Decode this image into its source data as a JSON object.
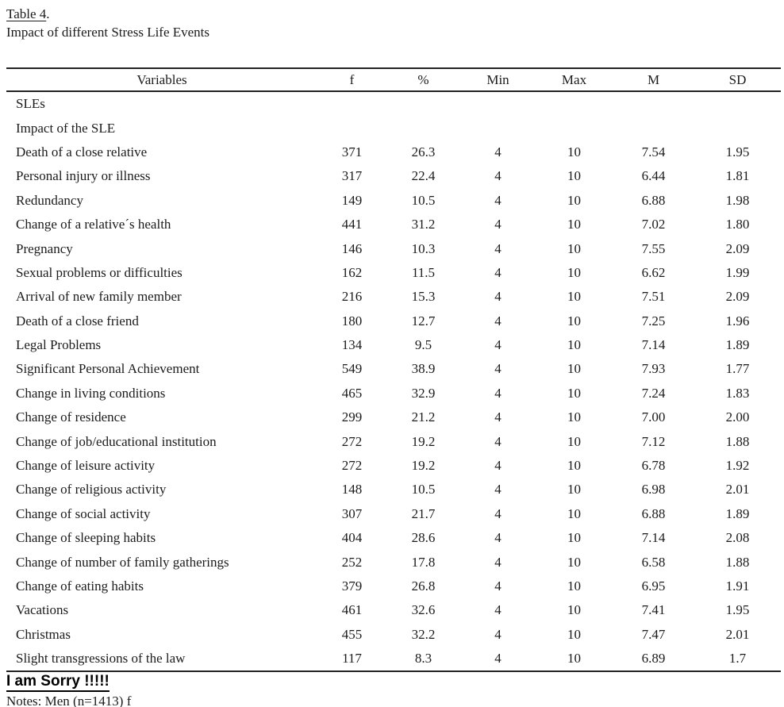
{
  "page": {
    "table_label": "Table 4",
    "table_label_suffix": ".",
    "subtitle": "Impact of different Stress Life Events",
    "sorry_text": "I am Sorry !!!!!",
    "notes": "Notes: Men (n=1413) f"
  },
  "colors": {
    "text": "#1b1b1b",
    "rule": "#222222",
    "background": "#ffffff"
  },
  "table": {
    "columns": [
      "Variables",
      "f",
      "%",
      "Min",
      "Max",
      "M",
      "SD"
    ],
    "rows": [
      {
        "variable": "SLEs",
        "f": "",
        "pct": "",
        "min": "",
        "max": "",
        "m": "",
        "sd": ""
      },
      {
        "variable": "Impact of the SLE",
        "f": "",
        "pct": "",
        "min": "",
        "max": "",
        "m": "",
        "sd": ""
      },
      {
        "variable": "Death of a close relative",
        "f": "371",
        "pct": "26.3",
        "min": "4",
        "max": "10",
        "m": "7.54",
        "sd": "1.95"
      },
      {
        "variable": "Personal injury or illness",
        "f": "317",
        "pct": "22.4",
        "min": "4",
        "max": "10",
        "m": "6.44",
        "sd": "1.81"
      },
      {
        "variable": "Redundancy",
        "f": "149",
        "pct": "10.5",
        "min": "4",
        "max": "10",
        "m": "6.88",
        "sd": "1.98"
      },
      {
        "variable": "Change of a relative´s health",
        "f": "441",
        "pct": "31.2",
        "min": "4",
        "max": "10",
        "m": "7.02",
        "sd": "1.80"
      },
      {
        "variable": "Pregnancy",
        "f": "146",
        "pct": "10.3",
        "min": "4",
        "max": "10",
        "m": "7.55",
        "sd": "2.09"
      },
      {
        "variable": "Sexual problems or difficulties",
        "f": "162",
        "pct": "11.5",
        "min": "4",
        "max": "10",
        "m": "6.62",
        "sd": "1.99"
      },
      {
        "variable": "Arrival of new family member",
        "f": "216",
        "pct": "15.3",
        "min": "4",
        "max": "10",
        "m": "7.51",
        "sd": "2.09"
      },
      {
        "variable": "Death of a close friend",
        "f": "180",
        "pct": "12.7",
        "min": "4",
        "max": "10",
        "m": "7.25",
        "sd": "1.96"
      },
      {
        "variable": "Legal Problems",
        "f": "134",
        "pct": "9.5",
        "min": "4",
        "max": "10",
        "m": "7.14",
        "sd": "1.89"
      },
      {
        "variable": "Significant Personal Achievement",
        "f": "549",
        "pct": "38.9",
        "min": "4",
        "max": "10",
        "m": "7.93",
        "sd": "1.77"
      },
      {
        "variable": "Change in living conditions",
        "f": "465",
        "pct": "32.9",
        "min": "4",
        "max": "10",
        "m": "7.24",
        "sd": "1.83"
      },
      {
        "variable": "Change of residence",
        "f": "299",
        "pct": "21.2",
        "min": "4",
        "max": "10",
        "m": "7.00",
        "sd": "2.00"
      },
      {
        "variable": "Change of job/educational institution",
        "f": "272",
        "pct": "19.2",
        "min": "4",
        "max": "10",
        "m": "7.12",
        "sd": "1.88"
      },
      {
        "variable": "Change of leisure activity",
        "f": "272",
        "pct": "19.2",
        "min": "4",
        "max": "10",
        "m": "6.78",
        "sd": "1.92"
      },
      {
        "variable": "Change of religious activity",
        "f": "148",
        "pct": "10.5",
        "min": "4",
        "max": "10",
        "m": "6.98",
        "sd": "2.01"
      },
      {
        "variable": "Change of social activity",
        "f": "307",
        "pct": "21.7",
        "min": "4",
        "max": "10",
        "m": "6.88",
        "sd": "1.89"
      },
      {
        "variable": "Change of sleeping habits",
        "f": "404",
        "pct": "28.6",
        "min": "4",
        "max": "10",
        "m": "7.14",
        "sd": "2.08"
      },
      {
        "variable": "Change of number of family gatherings",
        "f": "252",
        "pct": "17.8",
        "min": "4",
        "max": "10",
        "m": "6.58",
        "sd": "1.88"
      },
      {
        "variable": "Change of eating habits",
        "f": "379",
        "pct": "26.8",
        "min": "4",
        "max": "10",
        "m": "6.95",
        "sd": "1.91"
      },
      {
        "variable": "Vacations",
        "f": "461",
        "pct": "32.6",
        "min": "4",
        "max": "10",
        "m": "7.41",
        "sd": "1.95"
      },
      {
        "variable": "Christmas",
        "f": "455",
        "pct": "32.2",
        "min": "4",
        "max": "10",
        "m": "7.47",
        "sd": "2.01"
      },
      {
        "variable": "Slight transgressions of the law",
        "f": "117",
        "pct": "8.3",
        "min": "4",
        "max": "10",
        "m": "6.89",
        "sd": "1.7"
      }
    ]
  }
}
